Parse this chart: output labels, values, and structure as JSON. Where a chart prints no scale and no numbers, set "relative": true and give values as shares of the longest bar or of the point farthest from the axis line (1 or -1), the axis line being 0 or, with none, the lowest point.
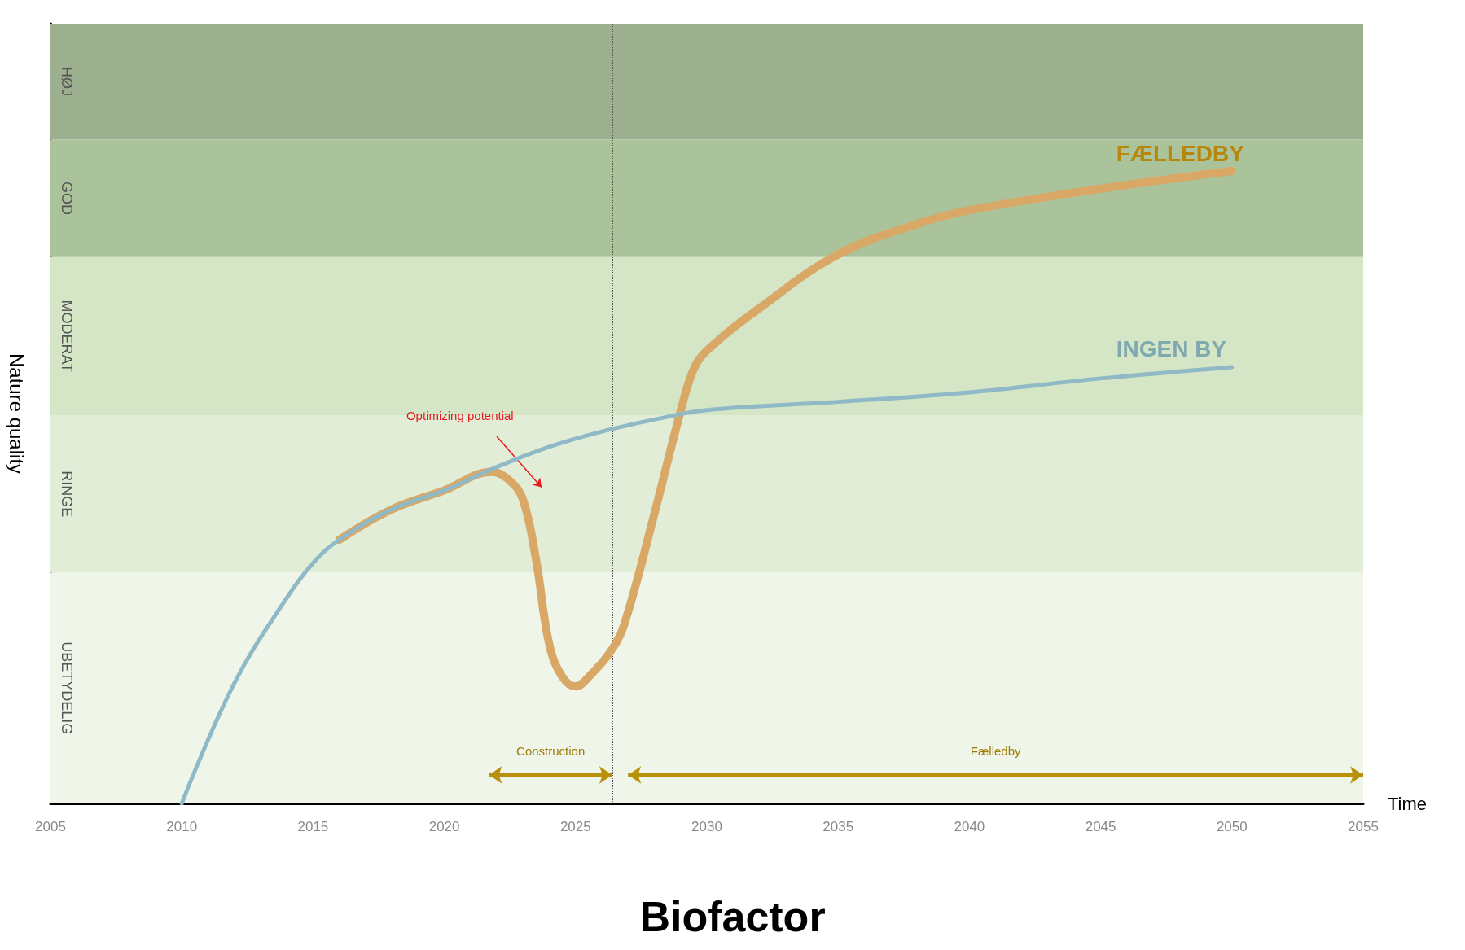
{
  "chart_data": {
    "type": "line",
    "title": "Biofactor",
    "xlabel": "Time",
    "ylabel": "Nature quality",
    "relative": true,
    "xlim": [
      2005,
      2055
    ],
    "xticks": [
      2005,
      2010,
      2015,
      2020,
      2025,
      2030,
      2035,
      2040,
      2045,
      2050,
      2055
    ],
    "grid": false,
    "legend": false,
    "marker": "none",
    "line_style": "solid",
    "series": [
      {
        "name": "FÆLLEDBY",
        "color": "#d9a867",
        "x": [
          2016,
          2018,
          2020,
          2021.8,
          2022.5,
          2023,
          2023.5,
          2024,
          2024.5,
          2025,
          2025.5,
          2026.5,
          2027,
          2028,
          2029,
          2029.5,
          2030,
          2032,
          2035,
          2038,
          2040,
          2045,
          2050
        ],
        "values": [
          0.417,
          0.465,
          0.495,
          0.524,
          0.51,
          0.48,
          0.384,
          0.251,
          0.2,
          0.185,
          0.2,
          0.251,
          0.303,
          0.458,
          0.62,
          0.687,
          0.716,
          0.783,
          0.868,
          0.916,
          0.938,
          0.972,
          1.0
        ]
      },
      {
        "name": "INGEN BY",
        "color": "#8fb9c6",
        "x": [
          2010,
          2012,
          2014,
          2015,
          2016,
          2018,
          2020,
          2022,
          2024,
          2026,
          2028,
          2030,
          2035,
          2040,
          2045,
          2050
        ],
        "values": [
          0,
          0.19,
          0.325,
          0.38,
          0.417,
          0.465,
          0.495,
          0.532,
          0.564,
          0.588,
          0.607,
          0.622,
          0.635,
          0.65,
          0.672,
          0.69
        ]
      }
    ],
    "bands": [
      {
        "axis": "y",
        "from": 0,
        "to": 0.365,
        "label": "UBETYDELIG",
        "color": "#eff6e9"
      },
      {
        "axis": "y",
        "from": 0.365,
        "to": 0.614,
        "label": "RINGE",
        "color": "#e2edd7"
      },
      {
        "axis": "y",
        "from": 0.614,
        "to": 0.864,
        "label": "MODERAT",
        "color": "#d4e6c5"
      },
      {
        "axis": "y",
        "from": 0.864,
        "to": 1.05,
        "label": "GOD",
        "color": "#abc39a"
      },
      {
        "axis": "y",
        "from": 1.05,
        "to": 1.233,
        "label": "HØJ",
        "color": "#9caf8f"
      }
    ],
    "ref_lines": [
      {
        "axis": "x",
        "value": 2021.7,
        "color": "#555555",
        "line_style": "dotted"
      },
      {
        "axis": "x",
        "value": 2026.4,
        "color": "#555555",
        "line_style": "dotted"
      }
    ],
    "annotations": [
      "Optimizing potential",
      "Construction",
      "Fælledby"
    ]
  }
}
